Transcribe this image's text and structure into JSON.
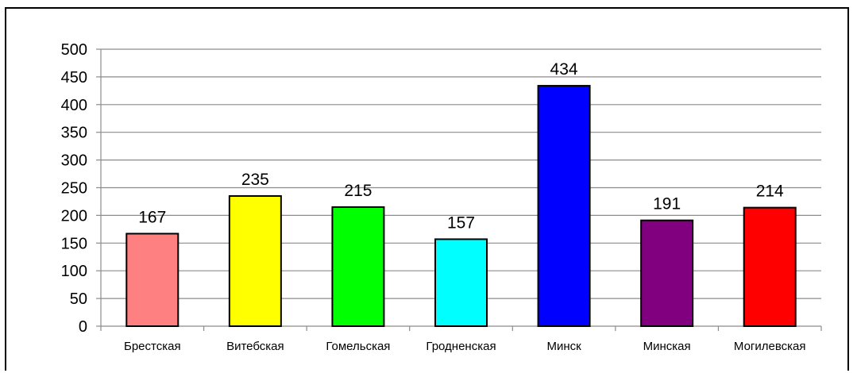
{
  "chart_data": {
    "type": "bar",
    "categories": [
      "Брестская",
      "Витебская",
      "Гомельская",
      "Гродненская",
      "Минск",
      "Минская",
      "Могилевская"
    ],
    "values": [
      167,
      235,
      215,
      157,
      434,
      191,
      214
    ],
    "colors": [
      "#ff8080",
      "#ffff00",
      "#00ff00",
      "#00ffff",
      "#0000ff",
      "#800080",
      "#ff0000"
    ],
    "ylim": [
      0,
      500
    ],
    "yticks": [
      0,
      50,
      100,
      150,
      200,
      250,
      300,
      350,
      400,
      450,
      500
    ],
    "grid": true,
    "data_labels": true
  }
}
